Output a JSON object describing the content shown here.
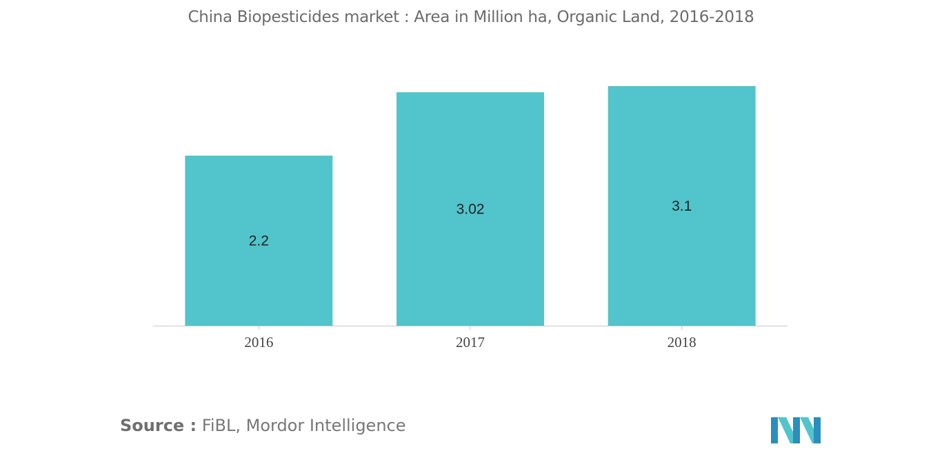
{
  "chart_data": {
    "type": "bar",
    "title": "China Biopesticides market : Area in Million ha, Organic Land, 2016-2018",
    "categories": [
      "2016",
      "2017",
      "2018"
    ],
    "values": [
      2.2,
      3.02,
      3.1
    ],
    "data_labels": [
      "2.2",
      "3.02",
      "3.1"
    ],
    "xlabel": "",
    "ylabel": "",
    "ylim": [
      0,
      3.1
    ],
    "grid": false,
    "legend": "none",
    "bar_color": "#52c4cb",
    "axis_color": "#c8c8c8"
  },
  "source": {
    "prefix": "Source :",
    "text": " FiBL, Mordor Intelligence"
  },
  "logo": {
    "icon": "mordor-intelligence-logo",
    "colors": [
      "#2a8fbd",
      "#52c4cb"
    ]
  }
}
